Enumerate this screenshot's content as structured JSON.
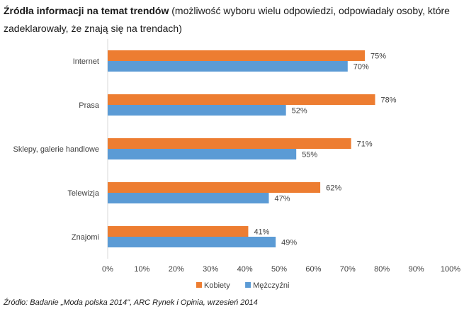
{
  "header": {
    "title_bold": "Źródła informacji na temat trendów",
    "title_rest": "(możliwość wyboru wielu odpowiedzi, odpowiadały osoby, które zadeklarowały, że znają się na trendach)"
  },
  "chart_data": {
    "type": "bar",
    "orientation": "horizontal",
    "categories": [
      "Internet",
      "Prasa",
      "Sklepy, galerie handlowe",
      "Telewizja",
      "Znajomi"
    ],
    "series": [
      {
        "name": "Kobiety",
        "values": [
          75,
          78,
          71,
          62,
          41
        ],
        "color": "#ED7D31"
      },
      {
        "name": "Mężczyźni",
        "values": [
          70,
          52,
          55,
          47,
          49
        ],
        "color": "#5B9BD5"
      }
    ],
    "value_suffix": "%",
    "xlim": [
      0,
      100
    ],
    "xticks": [
      0,
      10,
      20,
      30,
      40,
      50,
      60,
      70,
      80,
      90,
      100
    ],
    "xtick_labels": [
      "0%",
      "10%",
      "20%",
      "30%",
      "40%",
      "50%",
      "60%",
      "70%",
      "80%",
      "90%",
      "100%"
    ],
    "legend_position": "bottom",
    "grid": false
  },
  "footer": {
    "source": "Źródło: Badanie „Moda polska 2014\", ARC Rynek i Opinia, wrzesień 2014"
  }
}
